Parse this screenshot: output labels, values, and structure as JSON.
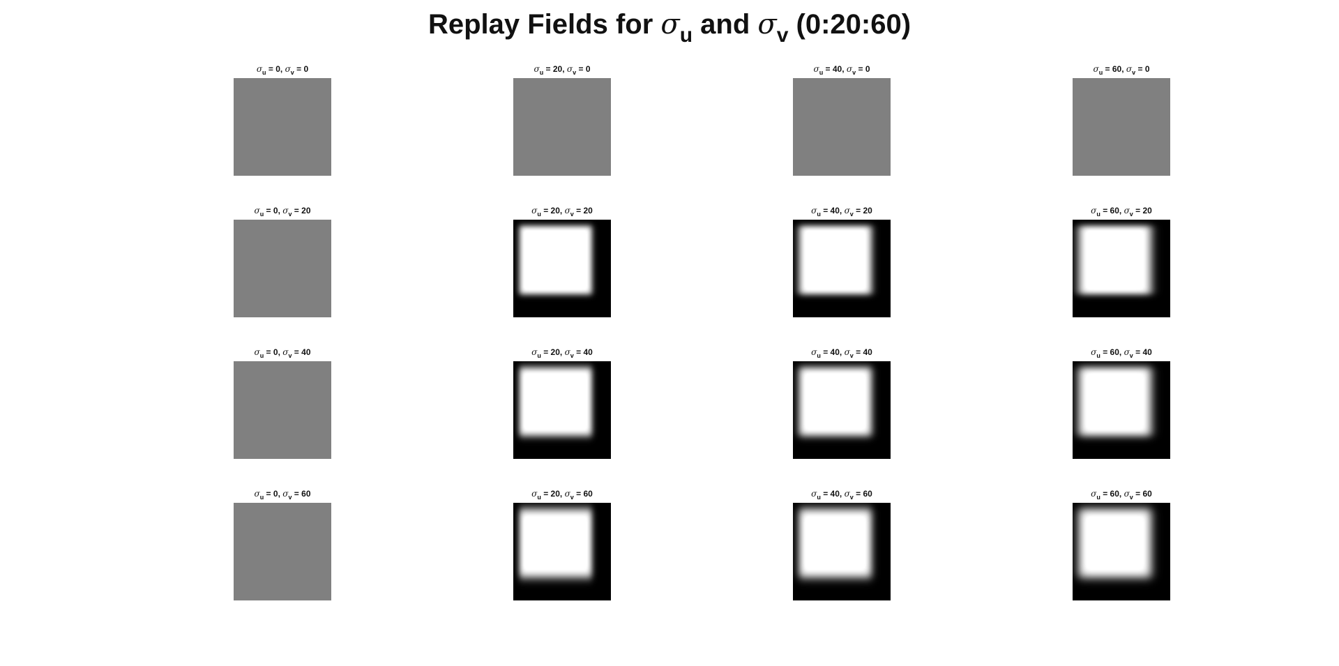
{
  "figure": {
    "title": {
      "prefix": "Replay Fields for",
      "sym1": "σ",
      "sub1": "u",
      "mid": "and",
      "sym2": "σ",
      "sub2": "v",
      "suffix": "(0:20:60)"
    },
    "panel_title_template": {
      "sym": "σ",
      "sub_u": "u",
      "sub_v": "v",
      "eq": " = ",
      "sep": ", "
    },
    "colormap": "gray",
    "flat_field_gray": "#808080",
    "panels": [
      {
        "sigma_u": "0",
        "sigma_v": "0",
        "field": "uniform-gray"
      },
      {
        "sigma_u": "20",
        "sigma_v": "0",
        "field": "uniform-gray"
      },
      {
        "sigma_u": "40",
        "sigma_v": "0",
        "field": "uniform-gray"
      },
      {
        "sigma_u": "60",
        "sigma_v": "0",
        "field": "uniform-gray"
      },
      {
        "sigma_u": "0",
        "sigma_v": "20",
        "field": "uniform-gray"
      },
      {
        "sigma_u": "20",
        "sigma_v": "20",
        "field": "blurred-white-square"
      },
      {
        "sigma_u": "40",
        "sigma_v": "20",
        "field": "blurred-white-square"
      },
      {
        "sigma_u": "60",
        "sigma_v": "20",
        "field": "blurred-white-square"
      },
      {
        "sigma_u": "0",
        "sigma_v": "40",
        "field": "uniform-gray"
      },
      {
        "sigma_u": "20",
        "sigma_v": "40",
        "field": "blurred-white-square"
      },
      {
        "sigma_u": "40",
        "sigma_v": "40",
        "field": "blurred-white-square"
      },
      {
        "sigma_u": "60",
        "sigma_v": "40",
        "field": "blurred-white-square"
      },
      {
        "sigma_u": "0",
        "sigma_v": "60",
        "field": "uniform-gray"
      },
      {
        "sigma_u": "20",
        "sigma_v": "60",
        "field": "blurred-white-square"
      },
      {
        "sigma_u": "40",
        "sigma_v": "60",
        "field": "blurred-white-square"
      },
      {
        "sigma_u": "60",
        "sigma_v": "60",
        "field": "blurred-white-square"
      }
    ]
  }
}
